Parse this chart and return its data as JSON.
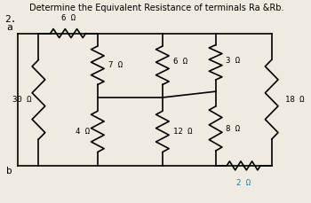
{
  "title": "Determine the Equivalent Resistance of terminals Ra &Rb.",
  "label_2": "2.",
  "label_a": "a",
  "label_b": "b",
  "bg_color": "#f0ebe0",
  "line_color": "#000000",
  "cyan_color": "#0088bb",
  "resistors": {
    "R30": "30 Ω",
    "R6_top": "6 Ω",
    "R7": "7 Ω",
    "R4": "4 Ω",
    "R6_mid": "6 Ω",
    "R12": "12 Ω",
    "R3": "3 Ω",
    "R8": "8 Ω",
    "R18": "18 Ω",
    "R2": "2 Ω"
  }
}
